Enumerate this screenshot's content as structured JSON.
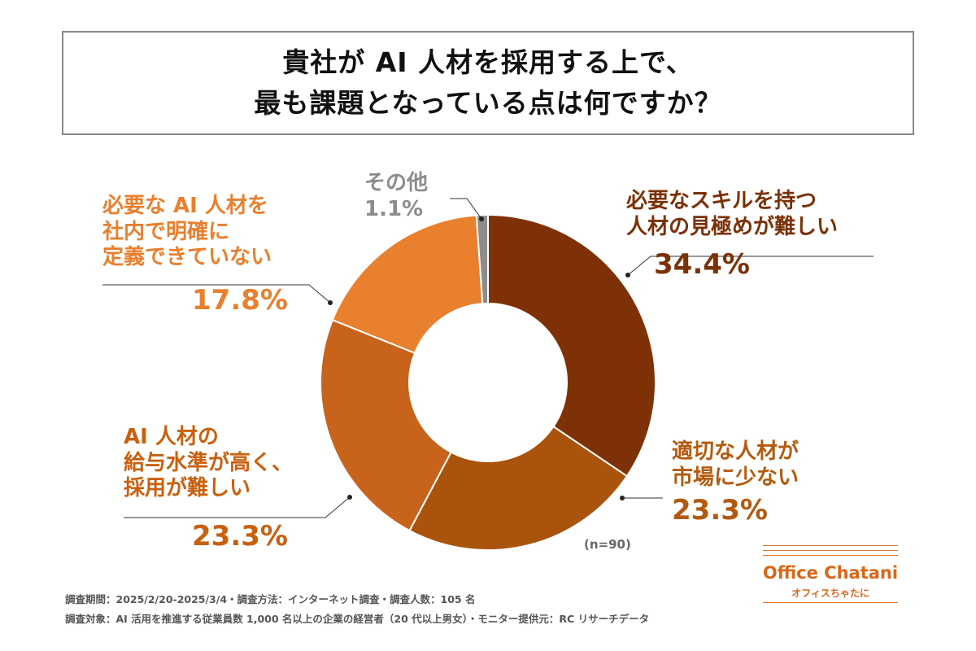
{
  "title": {
    "line1": "貴社が AI 人材を採用する上で、",
    "line2": "最も課題となっている点は何ですか？"
  },
  "chart_data": {
    "type": "pie",
    "variant": "donut",
    "title": "貴社が AI 人材を採用する上で、最も課題となっている点は何ですか？",
    "sample_size": "(n=90)",
    "slices": [
      {
        "label_lines": [
          "必要なスキルを持つ",
          "人材の見極めが難しい"
        ],
        "value": 34.4,
        "display": "34.4%",
        "color": "#7e3106"
      },
      {
        "label_lines": [
          "適切な人材が",
          "市場に少ない"
        ],
        "value": 23.3,
        "display": "23.3%",
        "color": "#a9530d"
      },
      {
        "label_lines": [
          "AI 人材の",
          "給与水準が高く、",
          "採用が難しい"
        ],
        "value": 23.3,
        "display": "23.3%",
        "color": "#c8631c"
      },
      {
        "label_lines": [
          "必要な AI 人材を",
          "社内で明確に",
          "定義できていない"
        ],
        "value": 17.8,
        "display": "17.8%",
        "color": "#e8802e"
      },
      {
        "label_lines": [
          "その他"
        ],
        "value": 1.1,
        "display": "1.1%",
        "color": "#8c8c8c"
      }
    ]
  },
  "footer": {
    "line1": "調査期間：2025/2/20-2025/3/4・調査方法：インターネット調査・調査人数：105 名",
    "line2": "調査対象：AI 活用を推進する従業員数 1,000 名以上の企業の経営者（20 代以上男女）・モニター提供元：RC リサーチデータ"
  },
  "logo": {
    "name": "Office Chatani",
    "sub": "オフィスちゃたに"
  },
  "colors": {
    "accent": "#d9671a",
    "border": "#8a8a8a"
  }
}
